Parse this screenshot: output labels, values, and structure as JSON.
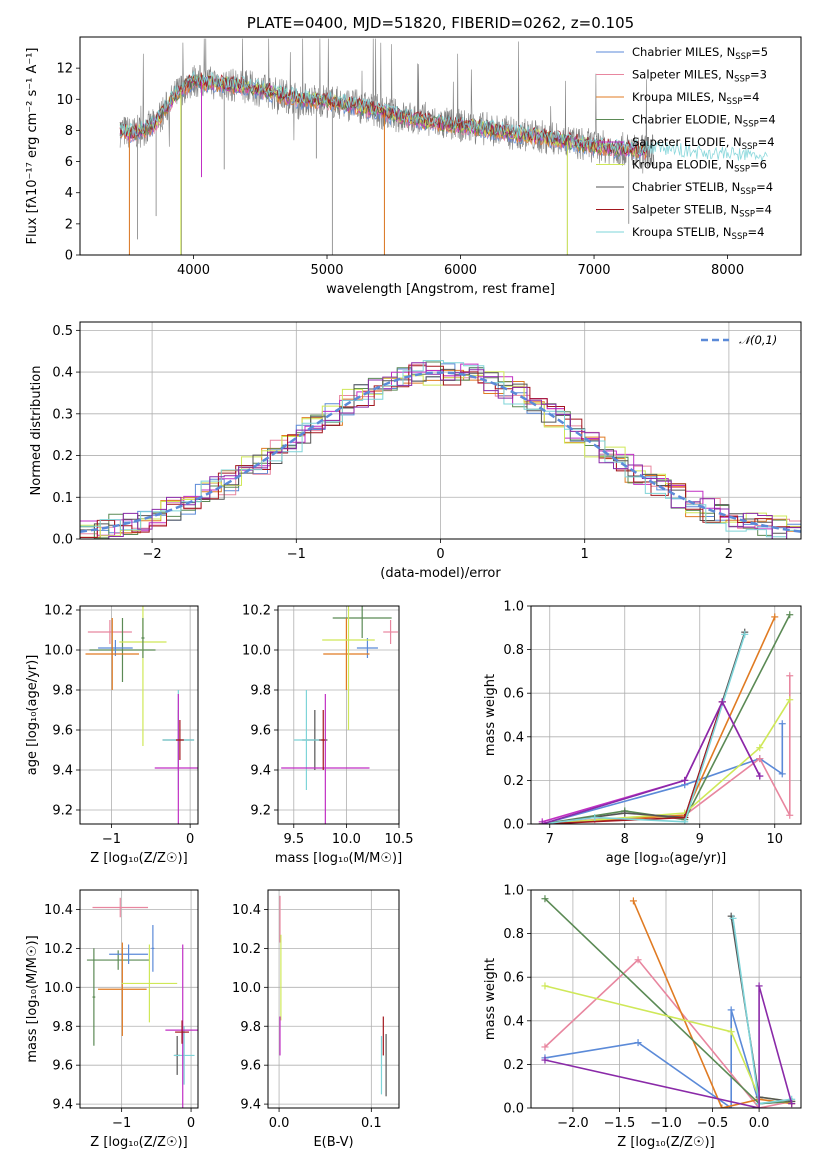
{
  "colors": {
    "chabrier_miles": "#5b8ad8",
    "salpeter_miles": "#e8869f",
    "kroupa_miles": "#e07b23",
    "chabrier_elodie": "#5b8a55",
    "salpeter_elodie": "#c12fc4",
    "kroupa_elodie": "#cfe858",
    "chabrier_stelib": "#555555",
    "salpeter_stelib": "#a3171e",
    "kroupa_stelib": "#7ed4d8",
    "data": "#808080",
    "purple": "#8a2aa8",
    "gaussian": "#5b8ad8"
  },
  "chart_data": [
    {
      "id": "spectrum",
      "type": "line",
      "title": "PLATE=0400, MJD=51820, FIBERID=0262, z=0.105",
      "xlabel": "wavelength [Angstrom, rest frame]",
      "ylabel": "Flux [fλ10⁻¹⁷ erg cm⁻² s⁻¹ A⁻¹]",
      "xlim": [
        3150,
        8550
      ],
      "ylim": [
        0,
        14
      ],
      "xticks": [
        "4000",
        "5000",
        "6000",
        "7000",
        "8000"
      ],
      "yticks": [
        "0",
        "2",
        "4",
        "6",
        "8",
        "10",
        "12"
      ],
      "shape": {
        "x": [
          3450,
          3550,
          3700,
          3800,
          3900,
          4000,
          4200,
          4400,
          4600,
          4800,
          5000,
          5200,
          5400,
          5600,
          5800,
          6000,
          6200,
          6400,
          6600,
          6800,
          7000,
          7200,
          7400,
          7600,
          7800,
          8000,
          8200,
          8300
        ],
        "y": [
          8.0,
          7.8,
          8.3,
          9.5,
          10.6,
          11.2,
          11.0,
          10.8,
          10.4,
          10.0,
          9.9,
          9.6,
          9.2,
          8.8,
          8.5,
          8.3,
          8.1,
          7.8,
          7.6,
          7.3,
          7.0,
          6.8,
          6.7,
          6.6,
          6.4,
          6.3,
          6.2,
          6.1
        ]
      },
      "legend_position": "upper right",
      "legend": [
        {
          "label": "Chabrier MILES, N",
          "sub": "SSP",
          "suffix": "=5",
          "color": "#5b8ad8"
        },
        {
          "label": "Salpeter MILES, N",
          "sub": "SSP",
          "suffix": "=3",
          "color": "#e8869f"
        },
        {
          "label": "Kroupa MILES, N",
          "sub": "SSP",
          "suffix": "=4",
          "color": "#e07b23"
        },
        {
          "label": "Chabrier ELODIE, N",
          "sub": "SSP",
          "suffix": "=4",
          "color": "#5b8a55"
        },
        {
          "label": "Salpeter ELODIE, N",
          "sub": "SSP",
          "suffix": "=4",
          "color": "#c12fc4"
        },
        {
          "label": "Kroupa ELODIE, N",
          "sub": "SSP",
          "suffix": "=6",
          "color": "#cfe858"
        },
        {
          "label": "Chabrier STELIB, N",
          "sub": "SSP",
          "suffix": "=4",
          "color": "#555555"
        },
        {
          "label": "Salpeter STELIB, N",
          "sub": "SSP",
          "suffix": "=4",
          "color": "#a3171e"
        },
        {
          "label": "Kroupa STELIB, N",
          "sub": "SSP",
          "suffix": "=4",
          "color": "#7ed4d8"
        }
      ]
    },
    {
      "id": "residuals",
      "type": "step",
      "xlabel": "(data-model)/error",
      "ylabel": "Normed distribution",
      "xlim": [
        -2.5,
        2.5
      ],
      "ylim": [
        0,
        0.52
      ],
      "xticks": [
        "−2",
        "−1",
        "0",
        "1",
        "2"
      ],
      "yticks": [
        "0.0",
        "0.1",
        "0.2",
        "0.3",
        "0.4",
        "0.5"
      ],
      "grid": true,
      "legend": "𝒩(0,1)"
    },
    {
      "id": "age_vs_Z",
      "type": "errorbar",
      "xlabel": "Z [log₁₀(Z/Z☉)]",
      "ylabel": "age  [log₁₀(age/yr)]",
      "xlim": [
        -1.4,
        0.1
      ],
      "ylim": [
        9.13,
        10.22
      ],
      "xticks": [
        "−1",
        "0"
      ],
      "yticks": [
        "9.2",
        "9.4",
        "9.6",
        "9.8",
        "10.0",
        "10.2"
      ],
      "grid": true,
      "points": [
        {
          "c": "#e8869f",
          "x": -1.02,
          "dx": 0.28,
          "y": 10.09,
          "dy": 0.06
        },
        {
          "c": "#5b8a55",
          "x": -0.86,
          "dx": 0.42,
          "y": 10.0,
          "dy": 0.16
        },
        {
          "c": "#5b8ad8",
          "x": -0.95,
          "dx": 0.22,
          "y": 10.01,
          "dy": 0.04
        },
        {
          "c": "#e07b23",
          "x": -0.99,
          "dx": 0.34,
          "y": 9.98,
          "dy": 0.18
        },
        {
          "c": "#cfe858",
          "x": -0.6,
          "dx": 0.3,
          "y": 10.04,
          "dy": 0.52
        },
        {
          "c": "#5b8a55",
          "x": -0.6,
          "dx": 0.02,
          "y": 10.06,
          "dy": 0.1
        },
        {
          "c": "#555555",
          "x": -0.15,
          "dx": 0.2,
          "y": 9.55,
          "dy": 0.15
        },
        {
          "c": "#7ed4d8",
          "x": -0.15,
          "dx": 0.2,
          "y": 9.55,
          "dy": 0.25
        },
        {
          "c": "#c12fc4",
          "x": -0.15,
          "dx": 0.3,
          "y": 9.41,
          "dy": 0.37
        },
        {
          "c": "#a3171e",
          "x": -0.13,
          "dx": 0.05,
          "y": 9.55,
          "dy": 0.1
        }
      ]
    },
    {
      "id": "age_vs_mass",
      "type": "errorbar",
      "xlabel": "mass [log₁₀(M/M☉)]",
      "ylabel": "",
      "xlim": [
        9.35,
        10.5
      ],
      "ylim": [
        9.13,
        10.22
      ],
      "xticks": [
        "9.5",
        "10.0",
        "10.5"
      ],
      "yticks": [
        "9.2",
        "9.4",
        "9.6",
        "9.8",
        "10.0",
        "10.2"
      ],
      "grid": true,
      "points": [
        {
          "c": "#e8869f",
          "x": 10.42,
          "dx": 0.07,
          "y": 10.09,
          "dy": 0.06
        },
        {
          "c": "#5b8a55",
          "x": 10.15,
          "dx": 0.28,
          "y": 10.16,
          "dy": 0.1
        },
        {
          "c": "#5b8ad8",
          "x": 10.2,
          "dx": 0.1,
          "y": 10.01,
          "dy": 0.05
        },
        {
          "c": "#e07b23",
          "x": 10.0,
          "dx": 0.22,
          "y": 9.98,
          "dy": 0.18
        },
        {
          "c": "#cfe858",
          "x": 10.02,
          "dx": 0.25,
          "y": 10.05,
          "dy": 0.45
        },
        {
          "c": "#555555",
          "x": 9.7,
          "dx": 0.12,
          "y": 9.55,
          "dy": 0.15
        },
        {
          "c": "#7ed4d8",
          "x": 9.62,
          "dx": 0.12,
          "y": 9.55,
          "dy": 0.25
        },
        {
          "c": "#c12fc4",
          "x": 9.8,
          "dx": 0.42,
          "y": 9.41,
          "dy": 0.37
        },
        {
          "c": "#a3171e",
          "x": 9.78,
          "dx": 0.02,
          "y": 9.55,
          "dy": 0.15
        }
      ]
    },
    {
      "id": "massweight_vs_age",
      "type": "line",
      "xlabel": "age  [log₁₀(age/yr)]",
      "ylabel": "mass weight",
      "xlim": [
        6.75,
        10.35
      ],
      "ylim": [
        0,
        1
      ],
      "xticks": [
        "7",
        "8",
        "9",
        "10"
      ],
      "yticks": [
        "0.0",
        "0.2",
        "0.4",
        "0.6",
        "0.8",
        "1.0"
      ],
      "grid": true,
      "series": [
        {
          "c": "#5b8ad8",
          "x": [
            6.9,
            8.8,
            9.8,
            10.1,
            10.1
          ],
          "y": [
            0.0,
            0.18,
            0.3,
            0.23,
            0.46
          ]
        },
        {
          "c": "#e8869f",
          "x": [
            6.9,
            7.6,
            8.8,
            9.8,
            10.2,
            10.2
          ],
          "y": [
            0.0,
            0.02,
            0.04,
            0.3,
            0.04,
            0.68
          ]
        },
        {
          "c": "#e07b23",
          "x": [
            6.9,
            8.8,
            10.0
          ],
          "y": [
            0.0,
            0.04,
            0.95
          ]
        },
        {
          "c": "#5b8a55",
          "x": [
            6.9,
            8.0,
            8.8,
            10.2
          ],
          "y": [
            0.0,
            0.06,
            0.02,
            0.96
          ]
        },
        {
          "c": "#c12fc4",
          "x": [
            6.9,
            8.8,
            9.3,
            9.8
          ],
          "y": [
            0.01,
            0.2,
            0.56,
            0.22
          ]
        },
        {
          "c": "#cfe858",
          "x": [
            6.9,
            8.8,
            9.8,
            10.2
          ],
          "y": [
            0.0,
            0.05,
            0.35,
            0.57
          ]
        },
        {
          "c": "#555555",
          "x": [
            6.9,
            8.0,
            8.8,
            9.6
          ],
          "y": [
            0.0,
            0.05,
            0.03,
            0.88
          ]
        },
        {
          "c": "#a3171e",
          "x": [
            6.9,
            8.8,
            9.3
          ],
          "y": [
            0.0,
            0.03,
            0.56
          ]
        },
        {
          "c": "#7ed4d8",
          "x": [
            6.9,
            7.6,
            8.8,
            9.6
          ],
          "y": [
            0.0,
            0.03,
            0.01,
            0.87
          ]
        },
        {
          "c": "#8a2aa8",
          "x": [
            6.9,
            8.8,
            9.3,
            9.8
          ],
          "y": [
            0.0,
            0.2,
            0.56,
            0.22
          ]
        }
      ]
    },
    {
      "id": "mass_vs_Z",
      "type": "errorbar",
      "xlabel": "Z [log₁₀(Z/Z☉)]",
      "ylabel": "mass [log₁₀(M/M☉)]",
      "xlim": [
        -1.6,
        0.1
      ],
      "ylim": [
        9.38,
        10.5
      ],
      "xticks": [
        "−1",
        "0"
      ],
      "yticks": [
        "9.4",
        "9.6",
        "9.8",
        "10.0",
        "10.2",
        "10.4"
      ],
      "grid": true,
      "points": [
        {
          "c": "#e8869f",
          "x": -1.02,
          "dx": 0.4,
          "y": 10.41,
          "dy": 0.05
        },
        {
          "c": "#5b8a55",
          "x": -1.05,
          "dx": 0.45,
          "y": 10.14,
          "dy": 0.05
        },
        {
          "c": "#5b8ad8",
          "x": -0.9,
          "dx": 0.28,
          "y": 10.17,
          "dy": 0.05
        },
        {
          "c": "#e07b23",
          "x": -0.99,
          "dx": 0.35,
          "y": 9.99,
          "dy": 0.24
        },
        {
          "c": "#cfe858",
          "x": -0.6,
          "dx": 0.4,
          "y": 10.02,
          "dy": 0.2
        },
        {
          "c": "#5b8a55",
          "x": -1.4,
          "dx": 0.02,
          "y": 9.95,
          "dy": 0.25
        },
        {
          "c": "#5b8ad8",
          "x": -0.55,
          "dx": 0.02,
          "y": 10.2,
          "dy": 0.12
        },
        {
          "c": "#555555",
          "x": -0.2,
          "dx": 0.04,
          "y": 9.65,
          "dy": 0.1
        },
        {
          "c": "#7ed4d8",
          "x": -0.1,
          "dx": 0.15,
          "y": 9.65,
          "dy": 0.15
        },
        {
          "c": "#c12fc4",
          "x": -0.12,
          "dx": 0.25,
          "y": 9.78,
          "dy": 0.44
        },
        {
          "c": "#a3171e",
          "x": -0.13,
          "dx": 0.1,
          "y": 9.77,
          "dy": 0.06
        }
      ]
    },
    {
      "id": "mass_vs_ebv",
      "type": "errorbar",
      "xlabel": "E(B-V)",
      "ylabel": "",
      "xlim": [
        -0.012,
        0.13
      ],
      "ylim": [
        9.38,
        10.5
      ],
      "xticks": [
        "0.0",
        "0.1"
      ],
      "yticks": [
        "9.4",
        "9.6",
        "9.8",
        "10.0",
        "10.2",
        "10.4"
      ],
      "grid": true,
      "points": [
        {
          "c": "#e8869f",
          "x": 0.001,
          "dx": 0.0,
          "y": 10.35,
          "dy": 0.12
        },
        {
          "c": "#cfe858",
          "x": 0.002,
          "dx": 0.0,
          "y": 10.05,
          "dy": 0.22
        },
        {
          "c": "#c12fc4",
          "x": 0.001,
          "dx": 0.0,
          "y": 9.75,
          "dy": 0.1
        },
        {
          "c": "#a3171e",
          "x": 0.113,
          "dx": 0.0,
          "y": 9.75,
          "dy": 0.1
        },
        {
          "c": "#7ed4d8",
          "x": 0.111,
          "dx": 0.0,
          "y": 9.6,
          "dy": 0.15
        },
        {
          "c": "#555555",
          "x": 0.116,
          "dx": 0.0,
          "y": 9.6,
          "dy": 0.16
        }
      ]
    },
    {
      "id": "massweight_vs_Z",
      "type": "line",
      "xlabel": "Z [log₁₀(Z/Z☉)]",
      "ylabel": "mass weight",
      "xlim": [
        -2.45,
        0.45
      ],
      "ylim": [
        0,
        1
      ],
      "xticks": [
        "−2.0",
        "−1.5",
        "−1.0",
        "−0.5",
        "0.0"
      ],
      "yticks": [
        "0.0",
        "0.2",
        "0.4",
        "0.6",
        "0.8",
        "1.0"
      ],
      "grid": true,
      "series": [
        {
          "c": "#5b8ad8",
          "x": [
            -2.3,
            -1.3,
            -0.3,
            -0.3,
            0.0,
            0.35
          ],
          "y": [
            0.23,
            0.3,
            0.0,
            0.45,
            0.02,
            0.03
          ]
        },
        {
          "c": "#e8869f",
          "x": [
            -2.3,
            -1.3,
            0.0,
            0.35
          ],
          "y": [
            0.28,
            0.68,
            0.0,
            0.03
          ]
        },
        {
          "c": "#e07b23",
          "x": [
            -1.35,
            -0.4,
            0.0,
            0.35
          ],
          "y": [
            0.95,
            0.0,
            0.04,
            0.02
          ]
        },
        {
          "c": "#5b8a55",
          "x": [
            -2.3,
            0.0,
            0.35
          ],
          "y": [
            0.96,
            0.02,
            0.03
          ]
        },
        {
          "c": "#cfe858",
          "x": [
            -2.3,
            -0.3,
            0.0,
            0.35
          ],
          "y": [
            0.56,
            0.35,
            0.05,
            0.03
          ]
        },
        {
          "c": "#555555",
          "x": [
            -0.3,
            0.0,
            0.35
          ],
          "y": [
            0.88,
            0.05,
            0.03
          ]
        },
        {
          "c": "#7ed4d8",
          "x": [
            -0.28,
            0.0,
            0.35
          ],
          "y": [
            0.87,
            0.02,
            0.04
          ]
        },
        {
          "c": "#8a2aa8",
          "x": [
            -2.3,
            0.0,
            0.0,
            0.35
          ],
          "y": [
            0.22,
            0.0,
            0.56,
            0.02
          ]
        }
      ]
    }
  ]
}
